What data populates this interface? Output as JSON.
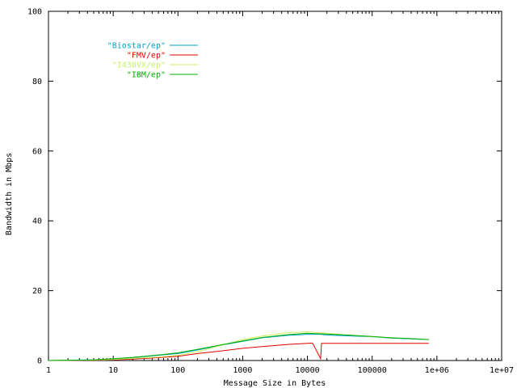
{
  "chart_data": {
    "type": "line",
    "xlabel": "Message Size in Bytes",
    "ylabel": "Bandwidth in Mbps",
    "x_scale": "log",
    "xlim": [
      1,
      10000000
    ],
    "ylim": [
      0,
      100
    ],
    "x_ticks": [
      {
        "value": 1,
        "label": "1"
      },
      {
        "value": 10,
        "label": "10"
      },
      {
        "value": 100,
        "label": "100"
      },
      {
        "value": 1000,
        "label": "1000"
      },
      {
        "value": 10000,
        "label": "10000"
      },
      {
        "value": 100000,
        "label": "100000"
      },
      {
        "value": 1000000,
        "label": "1e+06"
      },
      {
        "value": 10000000,
        "label": "1e+07"
      }
    ],
    "y_ticks": [
      {
        "value": 0,
        "label": "0"
      },
      {
        "value": 20,
        "label": "20"
      },
      {
        "value": 40,
        "label": "40"
      },
      {
        "value": 60,
        "label": "60"
      },
      {
        "value": 80,
        "label": "80"
      },
      {
        "value": 100,
        "label": "100"
      }
    ],
    "grid": false,
    "legend_position": "top-left",
    "series": [
      {
        "name": "\"Biostar/ep\"",
        "color": "#00a0c8",
        "x": [
          1,
          2,
          5,
          10,
          20,
          50,
          100,
          200,
          500,
          1000,
          2000,
          5000,
          10000,
          16000,
          20000,
          50000,
          100000,
          200000,
          500000,
          750000
        ],
        "y": [
          0,
          0.1,
          0.2,
          0.4,
          0.8,
          1.5,
          2.0,
          3.0,
          4.5,
          5.5,
          6.5,
          7.2,
          7.5,
          7.5,
          7.3,
          7.0,
          6.8,
          6.4,
          6.1,
          6.0
        ]
      },
      {
        "name": "\"FMV/ep\"",
        "color": "#e00000",
        "x": [
          1,
          2,
          5,
          10,
          20,
          50,
          100,
          200,
          500,
          1000,
          2000,
          5000,
          10000,
          12000,
          16000,
          16500,
          20000,
          50000,
          100000,
          200000,
          500000,
          750000
        ],
        "y": [
          0,
          0.05,
          0.1,
          0.2,
          0.4,
          0.8,
          1.2,
          2.0,
          2.8,
          3.5,
          4.0,
          4.6,
          4.9,
          5.0,
          0.5,
          4.9,
          4.9,
          4.9,
          4.9,
          4.9,
          4.9,
          4.9
        ]
      },
      {
        "name": "\"I430VX/ep\"",
        "color": "#c8f060",
        "x": [
          1,
          2,
          5,
          10,
          20,
          50,
          100,
          200,
          500,
          1000,
          2000,
          5000,
          10000,
          20000,
          50000,
          100000,
          200000,
          500000,
          750000
        ],
        "y": [
          0,
          0.05,
          0.15,
          0.3,
          0.6,
          1.0,
          1.5,
          2.5,
          4.5,
          6.0,
          7.0,
          8.0,
          8.2,
          7.8,
          7.2,
          6.8,
          6.5,
          6.2,
          6.0
        ]
      },
      {
        "name": "\"IBM/ep\"",
        "color": "#00b000",
        "x": [
          1,
          2,
          5,
          10,
          20,
          50,
          100,
          200,
          500,
          1000,
          2000,
          5000,
          10000,
          20000,
          50000,
          100000,
          200000,
          500000,
          750000
        ],
        "y": [
          0,
          0.1,
          0.2,
          0.5,
          0.9,
          1.6,
          2.2,
          3.2,
          4.6,
          5.6,
          6.6,
          7.4,
          7.8,
          7.6,
          7.2,
          6.9,
          6.5,
          6.2,
          6.0
        ]
      }
    ]
  }
}
